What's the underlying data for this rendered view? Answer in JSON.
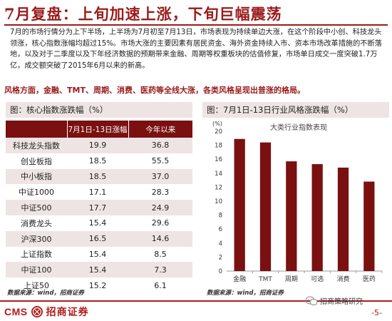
{
  "title": "7月复盘：上旬加速上涨，下旬巨幅震荡",
  "paragraph": "7月的市场行情分为上下半场，上半场为7月初至7月13日，市场表现为持续单边大涨，在这个阶段中小创、科技龙头领涨，核心指数涨幅均超过15%。市场大涨的主要因素有居民资金、海外资金持续入市、资本市场改革措施的不断落地，以及对于二季度以及下年经济数据的预期带来金融、周期等权重板块的估值修复，市场单日成交一度突破1.7万亿，成交额突破了2015年6月以来的新高。",
  "highlight": "风格方面，金融、TMT、周期、消费、医药等全线大涨，各类风格呈现出普涨的格局。",
  "left_panel": {
    "header": "图：核心指数涨跌幅（%）",
    "columns": [
      "",
      "7月1日-13日涨幅",
      "今年以来"
    ],
    "rows": [
      {
        "name": "科技龙头指数",
        "v1": "19.9",
        "v2": "36.8"
      },
      {
        "name": "创业板指",
        "v1": "18.5",
        "v2": "55.5"
      },
      {
        "name": "中小板指",
        "v1": "18.5",
        "v2": "37.0"
      },
      {
        "name": "中证1000",
        "v1": "17.1",
        "v2": "28.3"
      },
      {
        "name": "中证500",
        "v1": "17.7",
        "v2": "24.9"
      },
      {
        "name": "消费龙头",
        "v1": "15.4",
        "v2": "29.6"
      },
      {
        "name": "沪深300",
        "v1": "16.5",
        "v2": "14.6"
      },
      {
        "name": "上证指数",
        "v1": "15.4",
        "v2": "8.5"
      },
      {
        "name": "中证100",
        "v1": "15.4",
        "v2": "7.3"
      },
      {
        "name": "上证50",
        "v1": "15.2",
        "v2": "6.1"
      }
    ],
    "source": "数据来源：wind，招商证券"
  },
  "right_panel": {
    "header": "图：7月1日-13日行业风格涨跌幅（%）",
    "source": "数据来源：wind，招商证券"
  },
  "chart_data": {
    "type": "bar",
    "title": "大类行业指数表现",
    "ylabel": "(%)",
    "categories": [
      "金融",
      "TMT",
      "周期",
      "可选",
      "消费",
      "医药"
    ],
    "values": [
      18.9,
      18.4,
      15.7,
      15.3,
      14.8,
      12.8
    ],
    "ylim": [
      0,
      20
    ],
    "yticks": [
      0,
      2,
      4,
      6,
      8,
      10,
      12,
      14,
      16,
      18,
      20
    ],
    "bar_color": "#7a1010",
    "grid": false,
    "legend": "none"
  },
  "footer": {
    "logo_en": "CMS",
    "logo_cn": "招商证券",
    "wechat": "招商策略研究",
    "page": "-5-"
  },
  "colors": {
    "accent": "#9b1b1b",
    "table_header": "#7a1010",
    "band": "#efe4e4"
  }
}
